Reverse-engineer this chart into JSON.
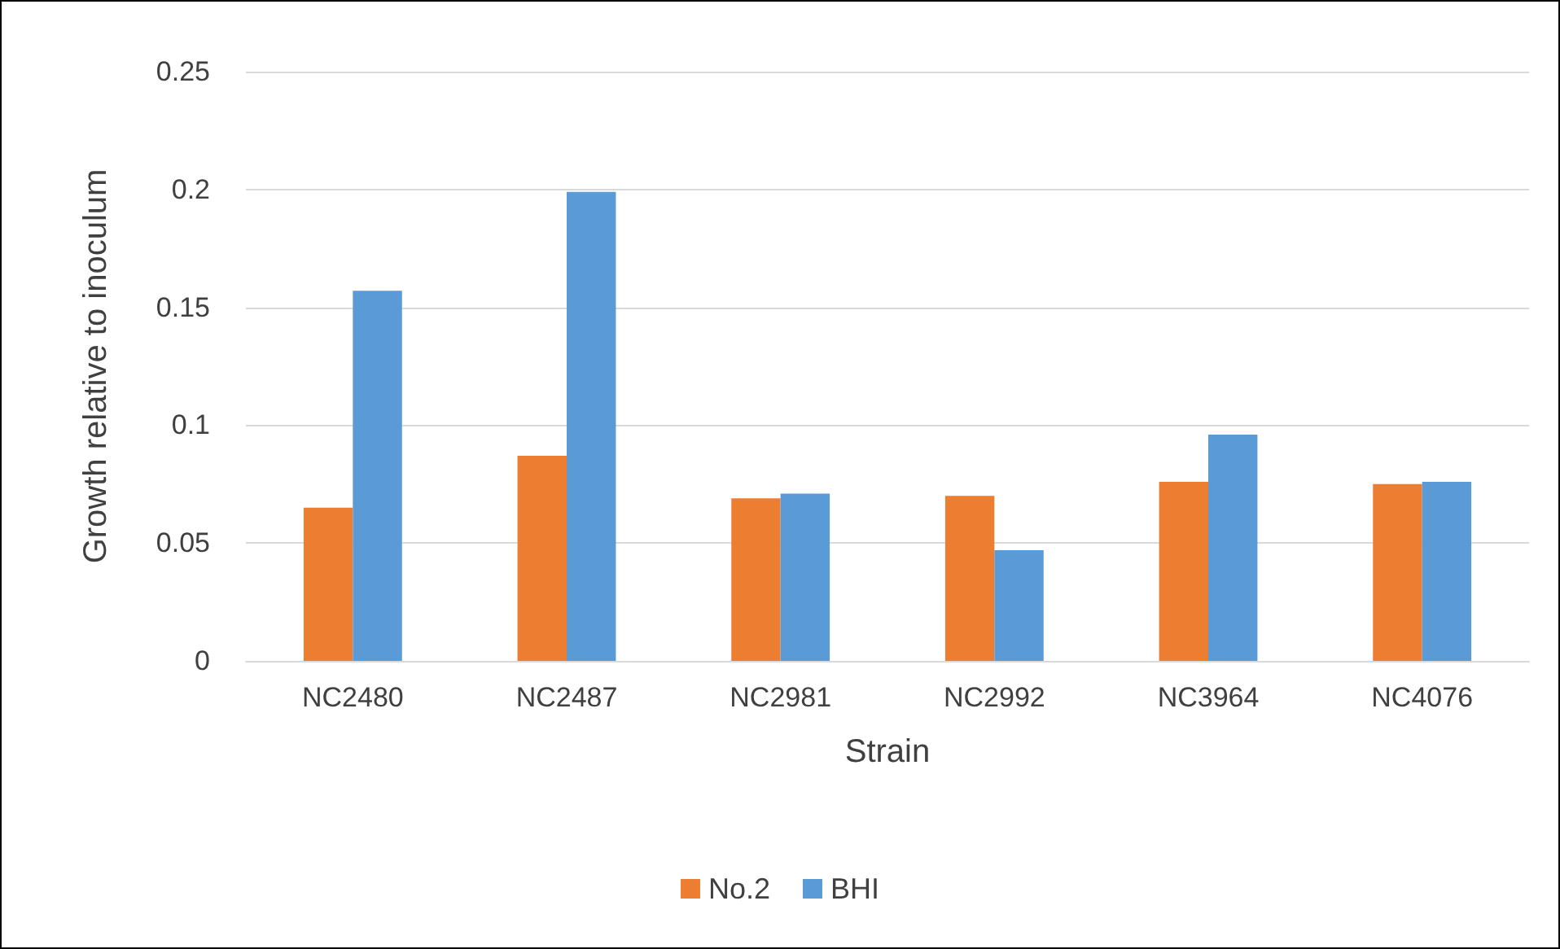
{
  "chart_data": {
    "type": "bar",
    "xlabel": "Strain",
    "ylabel": "Growth relative to inoculum",
    "categories": [
      "NC2480",
      "NC2487",
      "NC2981",
      "NC2992",
      "NC3964",
      "NC4076"
    ],
    "series": [
      {
        "name": "No.2",
        "color": "#ed7d31",
        "values": [
          0.065,
          0.087,
          0.069,
          0.07,
          0.076,
          0.075
        ]
      },
      {
        "name": "BHI",
        "color": "#5b9bd5",
        "values": [
          0.157,
          0.199,
          0.071,
          0.047,
          0.096,
          0.076
        ]
      }
    ],
    "ylim": [
      0,
      0.25
    ],
    "yticks": [
      0,
      0.05,
      0.1,
      0.15,
      0.2,
      0.25
    ],
    "grid": true,
    "legend": "bottom"
  }
}
